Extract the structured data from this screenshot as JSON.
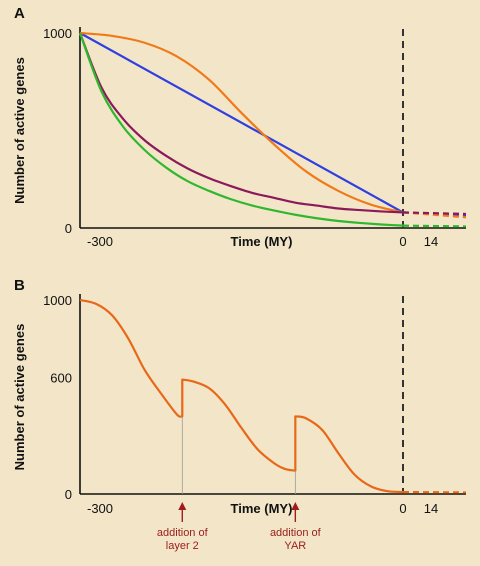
{
  "chart_data": [
    {
      "panel_label": "A",
      "type": "line",
      "xlabel": "Time (MY)",
      "ylabel": "Number of active genes",
      "xlim": [
        -300,
        20
      ],
      "ylim": [
        0,
        1000
      ],
      "x_ticks": [
        {
          "value": -300,
          "label": "-300"
        },
        {
          "value": 0,
          "label": "0"
        },
        {
          "value": 14,
          "label": "14"
        }
      ],
      "y_ticks": [
        {
          "value": 0,
          "label": "0"
        },
        {
          "value": 1000,
          "label": "1000"
        }
      ],
      "present_marker": 0,
      "projection_end": 20,
      "series": [
        {
          "color": "#2f3fe0",
          "x": [
            -300,
            0
          ],
          "values": [
            1000,
            80
          ],
          "projection": [
            80,
            62
          ]
        },
        {
          "color": "#f07a1a",
          "x": [
            -300,
            -270,
            -240,
            -210,
            -180,
            -150,
            -120,
            -90,
            -60,
            -30,
            0
          ],
          "values": [
            1000,
            985,
            950,
            880,
            760,
            590,
            430,
            290,
            190,
            120,
            80
          ],
          "projection": [
            80,
            55
          ]
        },
        {
          "color": "#8a1a5a",
          "x": [
            -300,
            -280,
            -260,
            -240,
            -220,
            -200,
            -180,
            -160,
            -140,
            -120,
            -100,
            -80,
            -60,
            -40,
            -20,
            0
          ],
          "values": [
            1000,
            720,
            560,
            450,
            370,
            305,
            255,
            215,
            180,
            155,
            130,
            115,
            100,
            92,
            85,
            80
          ],
          "projection": [
            80,
            72
          ]
        },
        {
          "color": "#2fb82f",
          "x": [
            -300,
            -280,
            -260,
            -240,
            -220,
            -200,
            -180,
            -160,
            -140,
            -120,
            -100,
            -80,
            -60,
            -40,
            -20,
            0
          ],
          "values": [
            1000,
            700,
            520,
            400,
            310,
            240,
            190,
            148,
            115,
            90,
            68,
            50,
            36,
            26,
            18,
            12
          ],
          "projection": [
            12,
            8
          ]
        }
      ]
    },
    {
      "panel_label": "B",
      "type": "line",
      "xlabel": "Time (MY)",
      "ylabel": "Number of active genes",
      "xlim": [
        -300,
        20
      ],
      "ylim": [
        0,
        1000
      ],
      "x_ticks": [
        {
          "value": -300,
          "label": "-300"
        },
        {
          "value": 0,
          "label": "0"
        },
        {
          "value": 14,
          "label": "14"
        }
      ],
      "y_ticks": [
        {
          "value": 0,
          "label": "0"
        },
        {
          "value": 600,
          "label": "600"
        },
        {
          "value": 1000,
          "label": "1000"
        }
      ],
      "present_marker": 0,
      "projection_end": 20,
      "series": [
        {
          "color": "#e8681a",
          "x": [
            -300,
            -285,
            -270,
            -255,
            -240,
            -225,
            -210,
            -205,
            -205,
            -195,
            -180,
            -165,
            -150,
            -135,
            -120,
            -110,
            -100,
            -100,
            -90,
            -75,
            -60,
            -45,
            -30,
            -15,
            0
          ],
          "values": [
            1000,
            980,
            920,
            800,
            640,
            520,
            410,
            400,
            590,
            580,
            545,
            460,
            340,
            230,
            160,
            130,
            120,
            400,
            390,
            330,
            210,
            100,
            40,
            15,
            10
          ],
          "projection": [
            10,
            8
          ]
        }
      ],
      "annotations": [
        {
          "x": -205,
          "lines": [
            "addition of",
            "layer 2"
          ]
        },
        {
          "x": -100,
          "lines": [
            "addition of",
            "YAR"
          ]
        }
      ]
    }
  ]
}
